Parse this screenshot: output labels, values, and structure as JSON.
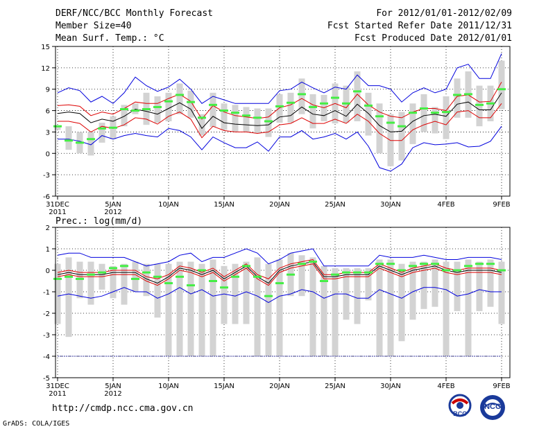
{
  "header": {
    "title": "DERF/NCC/BCC Monthly Forecast",
    "member": "Member Size=40",
    "variable": "Mean Surf. Temp.: °C",
    "period": "For 2012/01/01-2012/02/09",
    "refer": "Fcst Started Refer Date 2011/12/31",
    "produced": "Fcst Produced Date 2012/01/01"
  },
  "footer": {
    "url": "http://cmdp.ncc.cma.gov.cn",
    "credit": "GrADS: COLA/IGES",
    "logo_bcc": "BCC",
    "logo_ncc": "NCC"
  },
  "colors": {
    "max_line": "#0000dd",
    "min_line": "#dd0000",
    "mean_line": "#000000",
    "box": "#d3d3d3",
    "median": "#44ee44",
    "grid": "#000000"
  },
  "chart_data": [
    {
      "type": "box-line",
      "title": "Mean Surf. Temp.: °C",
      "xlabel": "",
      "ylabel": "",
      "x_days": [
        0,
        1,
        2,
        3,
        4,
        5,
        6,
        7,
        8,
        9,
        10,
        11,
        12,
        13,
        14,
        15,
        16,
        17,
        18,
        19,
        20,
        21,
        22,
        23,
        24,
        25,
        26,
        27,
        28,
        29,
        30,
        31,
        32,
        33,
        34,
        35,
        36,
        37,
        38,
        39,
        40
      ],
      "x_tick_days": [
        0,
        5,
        10,
        15,
        20,
        25,
        30,
        35,
        40
      ],
      "x_tick_labels": [
        "31DEC",
        "5JAN",
        "10JAN",
        "15JAN",
        "20JAN",
        "25JAN",
        "30JAN",
        "4FEB",
        "9FEB"
      ],
      "x_year_labels": [
        {
          "day": 0,
          "label": "2011"
        },
        {
          "day": 5,
          "label": "2012"
        }
      ],
      "ylim": [
        -6,
        15
      ],
      "y_ticks": [
        -6,
        -3,
        0,
        3,
        6,
        9,
        12,
        15
      ],
      "grid": true,
      "series": [
        {
          "name": "max",
          "values": [
            8.5,
            9.2,
            8.8,
            7.2,
            8.0,
            7.0,
            8.5,
            10.7,
            9.5,
            8.7,
            9.3,
            10.4,
            9.0,
            7.0,
            8.0,
            7.5,
            7.0,
            7.0,
            7.0,
            7.0,
            8.8,
            9.0,
            10.0,
            9.2,
            8.5,
            9.3,
            9.0,
            11.0,
            9.5,
            9.5,
            9.0,
            7.2,
            8.5,
            9.2,
            8.5,
            9.0,
            12.0,
            12.5,
            10.5,
            10.5,
            14.0
          ]
        },
        {
          "name": "upper",
          "values": [
            6.7,
            6.8,
            6.6,
            5.3,
            5.8,
            5.5,
            6.3,
            7.2,
            7.0,
            7.0,
            7.7,
            8.3,
            7.3,
            4.8,
            6.7,
            5.8,
            5.3,
            5.1,
            4.9,
            5.1,
            6.4,
            6.8,
            7.7,
            6.8,
            6.4,
            7.0,
            6.4,
            8.3,
            6.8,
            5.8,
            5.2,
            5.0,
            5.8,
            6.3,
            6.3,
            6.0,
            8.0,
            8.2,
            7.2,
            7.3,
            10.0
          ]
        },
        {
          "name": "mean",
          "values": [
            5.6,
            5.8,
            5.6,
            4.3,
            4.8,
            4.5,
            5.2,
            6.2,
            5.9,
            5.5,
            6.3,
            7.1,
            6.2,
            3.5,
            5.2,
            4.3,
            4.1,
            4.0,
            3.9,
            4.0,
            5.1,
            5.3,
            6.5,
            5.5,
            5.3,
            6.0,
            5.2,
            6.9,
            5.6,
            3.9,
            3.0,
            3.1,
            4.5,
            5.3,
            5.5,
            5.2,
            6.9,
            7.2,
            6.1,
            6.1,
            8.5
          ]
        },
        {
          "name": "lower",
          "values": [
            4.5,
            4.5,
            4.2,
            3.0,
            3.8,
            3.5,
            4.0,
            5.0,
            4.8,
            4.1,
            5.2,
            5.8,
            4.8,
            2.2,
            3.8,
            3.2,
            3.0,
            3.0,
            2.8,
            3.0,
            4.0,
            4.2,
            5.0,
            4.2,
            4.2,
            4.8,
            4.2,
            5.5,
            4.5,
            2.8,
            1.8,
            1.8,
            3.3,
            4.0,
            4.5,
            4.0,
            5.8,
            6.0,
            5.0,
            5.0,
            7.0
          ]
        },
        {
          "name": "min",
          "values": [
            2.0,
            2.0,
            1.7,
            1.2,
            2.5,
            2.0,
            2.5,
            2.8,
            2.5,
            2.3,
            3.5,
            3.2,
            2.3,
            0.5,
            2.3,
            1.5,
            0.8,
            0.8,
            1.6,
            0.3,
            2.3,
            2.3,
            3.2,
            2.0,
            2.3,
            2.8,
            2.0,
            3.0,
            1.0,
            -2.0,
            -2.5,
            -1.5,
            0.8,
            1.5,
            1.2,
            1.3,
            1.5,
            0.9,
            1.0,
            1.7,
            3.8
          ]
        }
      ],
      "boxes": {
        "low": [
          3.3,
          0.5,
          0.0,
          -0.3,
          1.5,
          2.0,
          3.8,
          5.5,
          4.0,
          4.3,
          4.5,
          5.5,
          5.0,
          2.5,
          3.7,
          3.3,
          3.0,
          3.0,
          2.8,
          2.3,
          4.3,
          4.3,
          5.5,
          3.5,
          4.5,
          4.2,
          4.3,
          4.5,
          2.5,
          0.0,
          -1.8,
          -1.0,
          1.3,
          3.0,
          2.8,
          2.0,
          5.0,
          5.0,
          3.8,
          4.5,
          6.2
        ],
        "high": [
          3.8,
          3.8,
          3.0,
          3.0,
          4.3,
          5.2,
          6.8,
          7.0,
          8.5,
          8.0,
          8.5,
          9.8,
          8.8,
          5.5,
          8.5,
          7.0,
          6.8,
          6.5,
          6.3,
          6.3,
          8.3,
          8.5,
          10.5,
          8.3,
          8.2,
          9.8,
          9.5,
          11.5,
          8.5,
          7.0,
          5.5,
          5.8,
          7.0,
          8.3,
          6.5,
          8.0,
          10.5,
          11.5,
          9.5,
          9.5,
          13.0
        ],
        "median": [
          3.8,
          1.8,
          1.5,
          2.0,
          3.5,
          3.6,
          6.2,
          6.0,
          6.2,
          6.5,
          7.3,
          8.2,
          7.2,
          5.0,
          6.8,
          6.0,
          5.7,
          5.3,
          5.0,
          4.5,
          6.6,
          7.1,
          8.3,
          6.5,
          7.0,
          7.8,
          7.0,
          8.7,
          6.7,
          5.2,
          4.3,
          3.8,
          5.7,
          6.3,
          5.7,
          5.8,
          8.2,
          8.3,
          6.8,
          7.0,
          9.0
        ]
      }
    },
    {
      "type": "box-line",
      "title": "Prec.: log(mm/d)",
      "xlabel": "",
      "ylabel": "",
      "x_days": [
        0,
        1,
        2,
        3,
        4,
        5,
        6,
        7,
        8,
        9,
        10,
        11,
        12,
        13,
        14,
        15,
        16,
        17,
        18,
        19,
        20,
        21,
        22,
        23,
        24,
        25,
        26,
        27,
        28,
        29,
        30,
        31,
        32,
        33,
        34,
        35,
        36,
        37,
        38,
        39,
        40
      ],
      "x_tick_days": [
        0,
        5,
        10,
        15,
        20,
        25,
        30,
        35,
        40
      ],
      "x_tick_labels": [
        "31DEC",
        "5JAN",
        "10JAN",
        "15JAN",
        "20JAN",
        "25JAN",
        "30JAN",
        "4FEB",
        "9FEB"
      ],
      "x_year_labels": [
        {
          "day": 0,
          "label": "2011"
        },
        {
          "day": 5,
          "label": "2012"
        }
      ],
      "ylim": [
        -5,
        2
      ],
      "y_ticks": [
        -5,
        -4,
        -3,
        -2,
        -1,
        0,
        1,
        2
      ],
      "grid": true,
      "series": [
        {
          "name": "max",
          "values": [
            0.7,
            0.8,
            0.8,
            0.6,
            0.6,
            0.6,
            0.6,
            0.4,
            0.2,
            0.3,
            0.4,
            0.7,
            0.8,
            0.4,
            0.6,
            0.6,
            0.8,
            1.0,
            0.8,
            0.3,
            0.5,
            0.8,
            0.9,
            1.0,
            0.2,
            0.2,
            0.2,
            0.2,
            0.2,
            0.7,
            0.6,
            0.6,
            0.6,
            0.7,
            0.6,
            0.5,
            0.5,
            0.6,
            0.6,
            0.6,
            0.5
          ]
        },
        {
          "name": "upper",
          "values": [
            -0.1,
            0.0,
            -0.1,
            -0.1,
            -0.1,
            0.0,
            0.0,
            0.0,
            -0.3,
            -0.4,
            -0.2,
            0.2,
            0.1,
            -0.1,
            0.1,
            -0.3,
            0.0,
            0.3,
            -0.2,
            -0.4,
            0.1,
            0.3,
            0.4,
            0.5,
            -0.2,
            -0.2,
            -0.1,
            -0.1,
            -0.1,
            0.3,
            0.1,
            -0.1,
            0.1,
            0.2,
            0.3,
            0.1,
            0.0,
            0.1,
            0.1,
            0.1,
            0.0
          ]
        },
        {
          "name": "mean",
          "values": [
            -0.2,
            -0.1,
            -0.2,
            -0.2,
            -0.2,
            -0.1,
            -0.1,
            -0.1,
            -0.4,
            -0.6,
            -0.3,
            0.1,
            0.0,
            -0.2,
            0.0,
            -0.4,
            -0.1,
            0.2,
            -0.3,
            -0.6,
            0.0,
            0.2,
            0.3,
            0.4,
            -0.3,
            -0.3,
            -0.2,
            -0.2,
            -0.2,
            0.2,
            0.0,
            -0.2,
            0.0,
            0.1,
            0.2,
            0.0,
            -0.1,
            0.0,
            0.0,
            0.0,
            -0.1
          ]
        },
        {
          "name": "lower",
          "values": [
            -0.3,
            -0.2,
            -0.3,
            -0.3,
            -0.3,
            -0.2,
            -0.2,
            -0.2,
            -0.5,
            -0.7,
            -0.4,
            0.0,
            -0.1,
            -0.3,
            -0.1,
            -0.5,
            -0.2,
            0.1,
            -0.4,
            -0.7,
            -0.1,
            0.1,
            0.2,
            0.3,
            -0.4,
            -0.4,
            -0.3,
            -0.3,
            -0.3,
            0.1,
            -0.1,
            -0.3,
            -0.1,
            0.0,
            0.1,
            -0.1,
            -0.2,
            -0.1,
            -0.1,
            -0.1,
            -0.2
          ]
        },
        {
          "name": "min",
          "values": [
            -1.2,
            -1.1,
            -1.2,
            -1.3,
            -1.2,
            -1.0,
            -0.8,
            -1.0,
            -1.0,
            -1.3,
            -1.1,
            -0.8,
            -1.1,
            -0.9,
            -1.2,
            -1.1,
            -1.2,
            -1.0,
            -1.2,
            -1.5,
            -1.2,
            -1.1,
            -0.9,
            -1.0,
            -1.3,
            -1.1,
            -1.1,
            -1.3,
            -1.3,
            -0.9,
            -1.1,
            -1.3,
            -1.0,
            -0.8,
            -0.8,
            -0.9,
            -1.2,
            -1.1,
            -0.9,
            -1.0,
            -1.0
          ]
        },
        {
          "name": "floor",
          "values": [
            -4,
            -4,
            -4,
            -4,
            -4,
            -4,
            -4,
            -4,
            -4,
            -4,
            -4,
            -4,
            -4,
            -4,
            -4,
            -4,
            -4,
            -4,
            -4,
            -4,
            -4,
            -4,
            -4,
            -4,
            -4,
            -4,
            -4,
            -4,
            -4,
            -4,
            -4,
            -4,
            -4,
            -4,
            -4,
            -4,
            -4,
            -4,
            -4,
            -4,
            -4
          ]
        }
      ],
      "boxes": {
        "low": [
          -2.5,
          -3.1,
          -1.3,
          -1.6,
          -0.9,
          -1.3,
          -1.6,
          -1.0,
          -1.2,
          -2.2,
          -4.0,
          -4.0,
          -4.0,
          -4.0,
          -4.0,
          -2.5,
          -2.5,
          -2.5,
          -4.0,
          -4.0,
          -4.0,
          -1.2,
          -1.2,
          -4.0,
          -4.0,
          -4.0,
          -2.3,
          -2.5,
          -1.4,
          -4.0,
          -4.0,
          -3.3,
          -2.3,
          -1.8,
          -1.7,
          -4.0,
          -1.9,
          -4.0,
          -1.9,
          -1.7,
          -2.5
        ],
        "high": [
          0.3,
          0.6,
          0.4,
          0.4,
          0.3,
          0.2,
          0.3,
          0.4,
          0.3,
          0.3,
          0.3,
          0.4,
          0.4,
          0.3,
          0.5,
          0.2,
          0.3,
          0.4,
          0.6,
          0.3,
          0.5,
          0.8,
          0.7,
          0.6,
          0.2,
          0.1,
          0.1,
          0.1,
          0.1,
          0.5,
          0.5,
          0.3,
          0.4,
          0.4,
          0.5,
          0.4,
          0.4,
          0.5,
          0.4,
          0.5,
          0.4
        ],
        "median": [
          -0.4,
          -0.3,
          -0.4,
          -0.2,
          -0.1,
          0.1,
          0.2,
          -0.4,
          -0.1,
          -0.3,
          -0.6,
          -0.3,
          -0.7,
          0.0,
          -0.5,
          -0.8,
          -0.3,
          0.2,
          -0.3,
          -1.2,
          -0.6,
          -0.2,
          0.3,
          0.4,
          -0.5,
          -0.2,
          -0.1,
          -0.1,
          -0.1,
          0.3,
          0.3,
          0.0,
          0.2,
          0.3,
          0.3,
          0.0,
          0.0,
          0.2,
          0.3,
          0.3,
          0.0
        ]
      }
    }
  ]
}
